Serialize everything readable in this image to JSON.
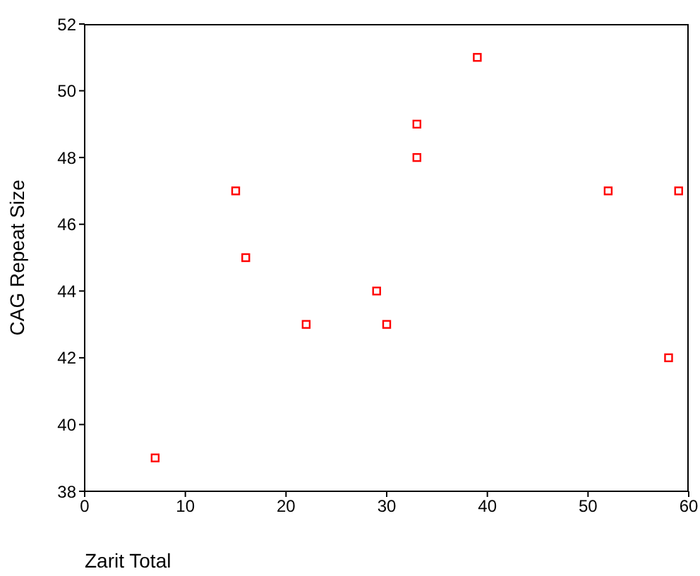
{
  "chart_data": {
    "type": "scatter",
    "xlabel": "Zarit Total",
    "ylabel": "CAG Repeat Size",
    "x": [
      7,
      15,
      16,
      22,
      29,
      30,
      33,
      33,
      39,
      52,
      58,
      59
    ],
    "series": [
      {
        "color": "#ff0000",
        "values": [
          39,
          47,
          45,
          43,
          44,
          43,
          49,
          48,
          51,
          47,
          42,
          47
        ]
      }
    ],
    "xlim": [
      0,
      60
    ],
    "xticks": [
      0,
      10,
      20,
      30,
      40,
      50,
      60
    ],
    "ylim": [
      38,
      52
    ],
    "yticks": [
      38,
      40,
      42,
      44,
      46,
      48,
      50,
      52
    ],
    "grid": false,
    "marker": "square"
  }
}
